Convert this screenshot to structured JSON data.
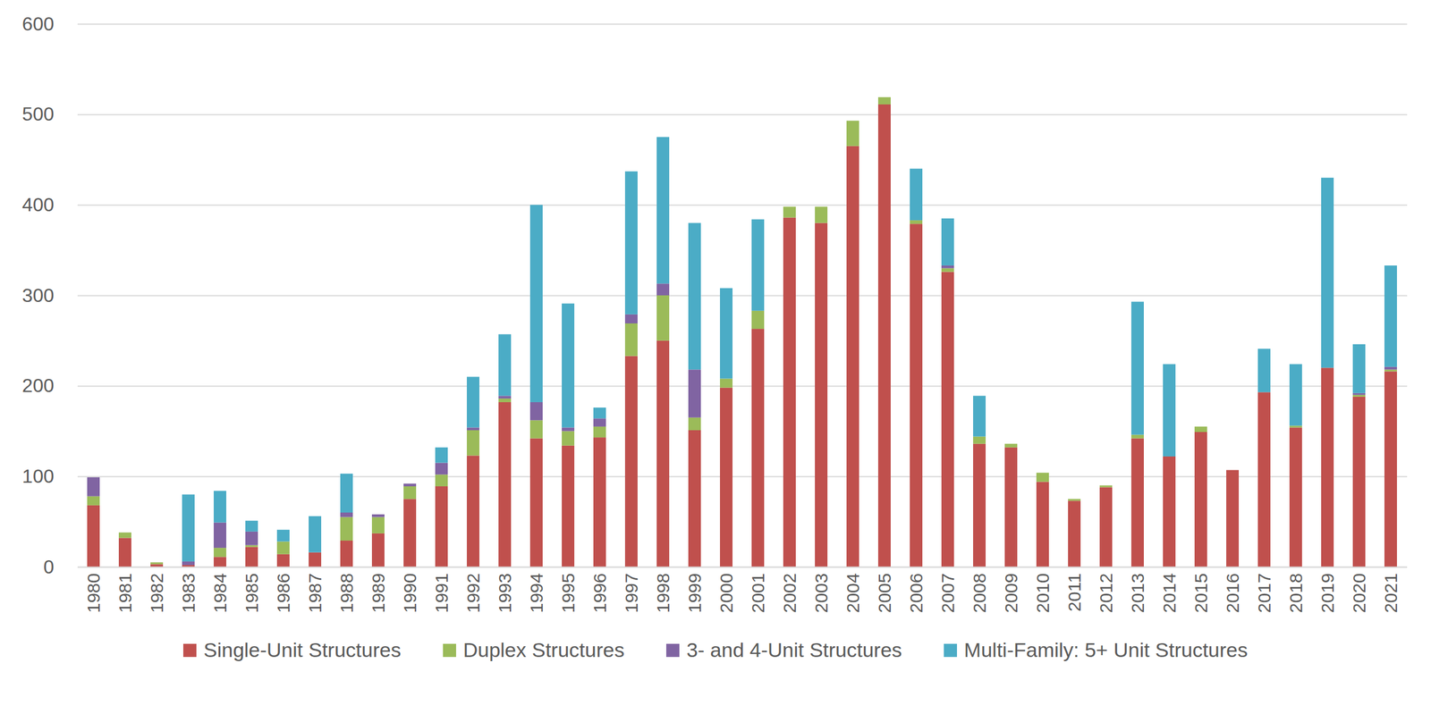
{
  "chart_data": {
    "type": "bar",
    "stacked": true,
    "grid": true,
    "legend": "bottom",
    "categories": [
      "1980",
      "1981",
      "1982",
      "1983",
      "1984",
      "1985",
      "1986",
      "1987",
      "1988",
      "1989",
      "1990",
      "1991",
      "1992",
      "1993",
      "1994",
      "1995",
      "1996",
      "1997",
      "1998",
      "1999",
      "2000",
      "2001",
      "2002",
      "2003",
      "2004",
      "2005",
      "2006",
      "2007",
      "2008",
      "2009",
      "2010",
      "2011",
      "2012",
      "2013",
      "2014",
      "2015",
      "2016",
      "2017",
      "2018",
      "2019",
      "2020",
      "2021"
    ],
    "ylim": [
      0,
      600
    ],
    "yticks": [
      0,
      100,
      200,
      300,
      400,
      500,
      600
    ],
    "series": [
      {
        "name": "Single-Unit Structures",
        "color": "#C0504D",
        "values": [
          68,
          32,
          3,
          2,
          11,
          22,
          14,
          16,
          29,
          37,
          75,
          89,
          123,
          182,
          142,
          134,
          143,
          233,
          250,
          151,
          198,
          263,
          386,
          380,
          465,
          511,
          379,
          326,
          136,
          132,
          94,
          73,
          88,
          142,
          122,
          149,
          107,
          193,
          154,
          220,
          188,
          216
        ]
      },
      {
        "name": "Duplex Structures",
        "color": "#9BBB59",
        "values": [
          10,
          6,
          2,
          0,
          10,
          2,
          14,
          0,
          26,
          18,
          14,
          13,
          28,
          4,
          20,
          16,
          12,
          36,
          50,
          14,
          10,
          20,
          12,
          18,
          28,
          8,
          4,
          4,
          8,
          4,
          10,
          2,
          2,
          4,
          0,
          6,
          0,
          0,
          2,
          0,
          2,
          2
        ]
      },
      {
        "name": "3- and 4-Unit Structures",
        "color": "#8064A2",
        "values": [
          21,
          0,
          0,
          4,
          28,
          15,
          0,
          0,
          5,
          3,
          3,
          13,
          3,
          3,
          20,
          4,
          9,
          10,
          13,
          53,
          0,
          0,
          0,
          0,
          0,
          0,
          0,
          3,
          0,
          0,
          0,
          0,
          0,
          0,
          0,
          0,
          0,
          0,
          0,
          0,
          2,
          3
        ]
      },
      {
        "name": "Multi-Family: 5+ Unit Structures",
        "color": "#4BACC6",
        "values": [
          0,
          0,
          0,
          74,
          35,
          12,
          13,
          40,
          43,
          0,
          0,
          17,
          56,
          68,
          218,
          137,
          12,
          158,
          162,
          162,
          100,
          101,
          0,
          0,
          0,
          0,
          57,
          52,
          45,
          0,
          0,
          0,
          0,
          147,
          102,
          0,
          0,
          48,
          68,
          210,
          54,
          112
        ]
      }
    ]
  }
}
